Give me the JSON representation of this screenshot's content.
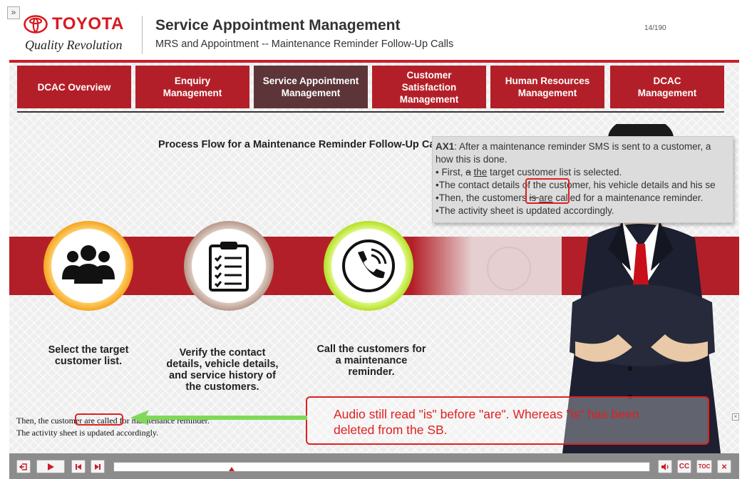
{
  "header": {
    "brand_name": "TOYOTA",
    "brand_tagline": "Quality Revolution",
    "title": "Service Appointment Management",
    "subtitle": "MRS and Appointment -- Maintenance Reminder Follow-Up Calls",
    "page_counter": "14/190"
  },
  "nav": {
    "tabs": [
      {
        "label": "DCAC Overview",
        "active": false
      },
      {
        "label": "Enquiry\nManagement",
        "active": false
      },
      {
        "label": "Service Appointment\nManagement",
        "active": true
      },
      {
        "label": "Customer\nSatisfaction\nManagement",
        "active": false
      },
      {
        "label": "Human Resources\nManagement",
        "active": false
      },
      {
        "label": "DCAC\nManagement",
        "active": false
      }
    ]
  },
  "main": {
    "flow_title": "Process Flow for a Maintenance Reminder Follow-Up Calls",
    "steps": [
      {
        "label": "Select the target\ncustomer list.",
        "icon": "people-group-icon"
      },
      {
        "label": "Verify the contact\ndetails, vehicle details,\nand service history of\nthe customers.",
        "icon": "clipboard-checklist-icon"
      },
      {
        "label": "Call the customers for\na maintenance\nreminder.",
        "icon": "phone-call-icon"
      }
    ]
  },
  "comment": {
    "tag": "AX1",
    "line1": ":  After a maintenance reminder SMS is sent to a customer, a",
    "line2": "how this is done.",
    "line3a": "• First, ",
    "line3_deleted": "a",
    "line3_inserted": "the",
    "line3b": " target customer list is selected.",
    "line4": "•The contact details of the customer, his vehicle details and his se",
    "line5a": "•Then, the customers ",
    "line5_deleted": "is ",
    "line5_inserted": "are",
    "line5b": " called for a maintenance reminder.",
    "line6": "•The activity sheet is updated accordingly."
  },
  "callout": {
    "text": "Audio still read \"is\" before \"are\". Whereas \"is\" has been\ndeleted from  the SB."
  },
  "transcript": {
    "line1": "Then, the customer are called for maintenance reminder.",
    "line2": "The activity sheet is updated accordingly."
  },
  "player": {
    "progress": 0.22,
    "cc_label": "CC",
    "toc_label": "TOC",
    "close_label": "×"
  },
  "colors": {
    "brand_red": "#c8202a",
    "tab_red": "#b31f28",
    "tab_active": "#5d3538",
    "annotation_red": "#e02020",
    "arrow_green": "#7ed957"
  }
}
